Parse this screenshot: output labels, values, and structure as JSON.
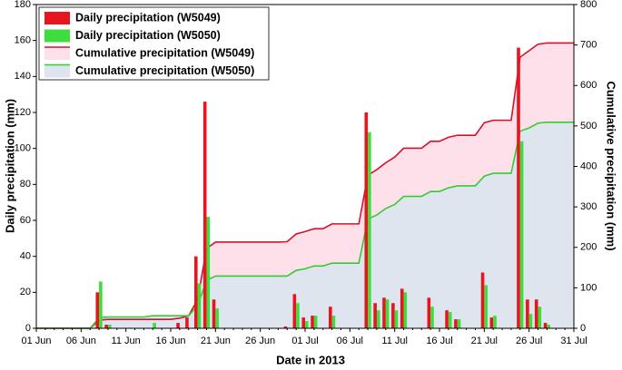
{
  "chart_data": {
    "type": "bar",
    "x_label": "Date in 2013",
    "y_label": "Daily precipitation (mm)",
    "y2_label": "Cumulative precipitation (mm)",
    "categories": [
      "01 Jun",
      null,
      null,
      null,
      null,
      "06 Jun",
      null,
      null,
      null,
      null,
      "11 Jun",
      null,
      null,
      null,
      null,
      "16 Jun",
      null,
      null,
      null,
      null,
      "21 Jun",
      null,
      null,
      null,
      null,
      "26 Jun",
      null,
      null,
      null,
      null,
      "01 Jul",
      null,
      null,
      null,
      null,
      "06 Jul",
      null,
      null,
      null,
      null,
      "11 Jul",
      null,
      null,
      null,
      null,
      "16 Jul",
      null,
      null,
      null,
      null,
      "21 Jul",
      null,
      null,
      null,
      null,
      "26 Jul",
      null,
      null,
      null,
      null,
      "31 Jul"
    ],
    "ylim": [
      0,
      180
    ],
    "yticks": [
      0,
      20,
      40,
      60,
      80,
      100,
      120,
      140,
      160,
      180
    ],
    "y2lim": [
      0,
      800
    ],
    "y2ticks": [
      0,
      100,
      200,
      300,
      400,
      500,
      600,
      700,
      800
    ],
    "legend": "upper left",
    "series": [
      {
        "name": "Cumulative precipitation (W5049)",
        "type": "area",
        "axis": "y2",
        "color": "#d8102a",
        "fill": "#fde0ea",
        "values": [
          0,
          0,
          0,
          0,
          0,
          0,
          0,
          20,
          22,
          22,
          22,
          22,
          22,
          22,
          22,
          22,
          25,
          31,
          71,
          197,
          213,
          213,
          213,
          213,
          213,
          213,
          213,
          213,
          214,
          233,
          239,
          246,
          246,
          258,
          258,
          258,
          258,
          378,
          392,
          409,
          423,
          445,
          445,
          445,
          462,
          462,
          472,
          477,
          477,
          477,
          508,
          514,
          514,
          514,
          670,
          686,
          702,
          705,
          705,
          705,
          705
        ]
      },
      {
        "name": "Cumulative precipitation (W5050)",
        "type": "area",
        "axis": "y2",
        "color": "#33cc33",
        "fill": "#dfe5ef",
        "values": [
          0,
          0,
          0,
          0,
          0,
          0,
          0,
          26,
          28,
          28,
          28,
          28,
          28,
          31,
          31,
          31,
          31,
          31,
          56,
          118,
          129,
          129,
          129,
          129,
          129,
          129,
          129,
          129,
          129,
          143,
          147,
          154,
          154,
          161,
          161,
          161,
          161,
          270,
          280,
          296,
          306,
          326,
          326,
          326,
          338,
          338,
          347,
          352,
          352,
          352,
          376,
          383,
          383,
          383,
          487,
          495,
          507,
          509,
          509,
          509,
          509
        ]
      },
      {
        "name": "Daily precipitation (W5049)",
        "type": "bar",
        "color": "#e8141e",
        "values": [
          0,
          0,
          0,
          0,
          0,
          0,
          0,
          20,
          2,
          0,
          0,
          0,
          0,
          0,
          0,
          0,
          3,
          6,
          40,
          126,
          16,
          0,
          0,
          0,
          0,
          0,
          0,
          0,
          1,
          19,
          6,
          7,
          0,
          12,
          0,
          0,
          0,
          120,
          14,
          17,
          14,
          22,
          0,
          0,
          17,
          0,
          10,
          5,
          0,
          0,
          31,
          6,
          0,
          0,
          156,
          16,
          16,
          3,
          0,
          0,
          0
        ]
      },
      {
        "name": "Daily precipitation (W5050)",
        "type": "bar",
        "color": "#3ddd3d",
        "values": [
          0,
          0,
          0,
          0,
          0,
          0,
          0,
          26,
          2,
          0,
          0,
          0,
          0,
          3,
          0,
          0,
          0,
          0,
          25,
          62,
          11,
          0,
          0,
          0,
          0,
          0,
          0,
          0,
          0,
          14,
          4,
          7,
          0,
          7,
          0,
          0,
          0,
          109,
          10,
          16,
          10,
          20,
          0,
          0,
          12,
          0,
          9,
          5,
          0,
          0,
          24,
          7,
          0,
          0,
          104,
          8,
          12,
          2,
          0,
          0,
          0
        ]
      }
    ]
  }
}
